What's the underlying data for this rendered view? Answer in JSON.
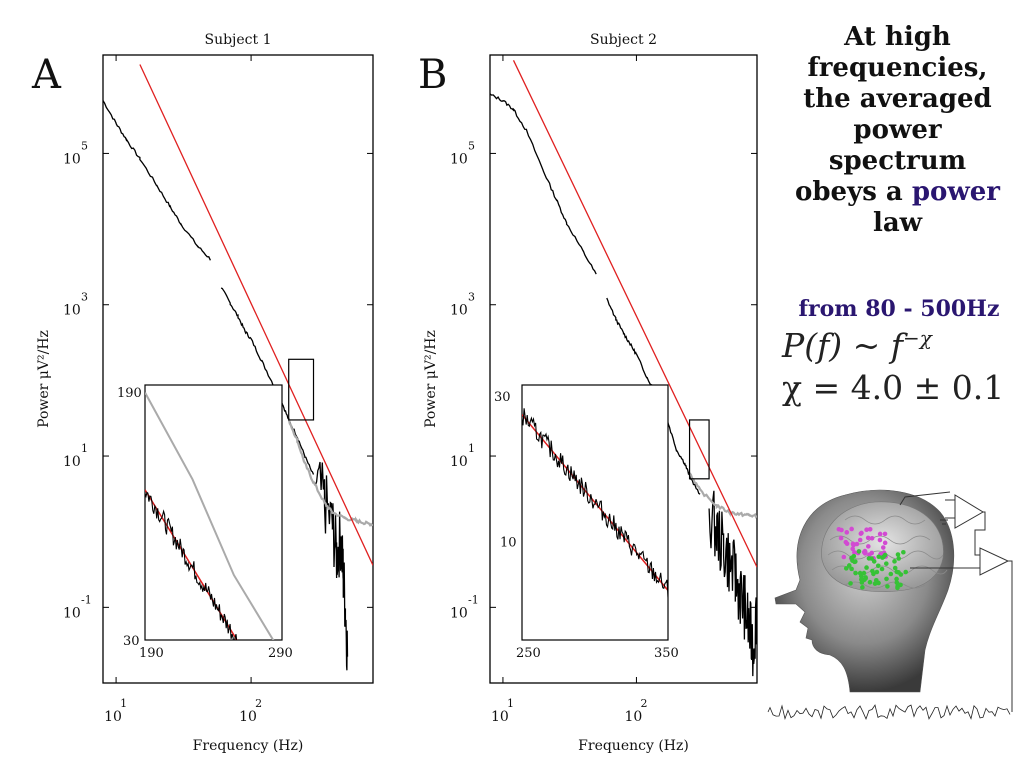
{
  "chart_data": [
    {
      "type": "line",
      "panel_letter": "A",
      "title": "Subject 1",
      "xlabel": "Frequency (Hz)",
      "ylabel": "Power μV²/Hz",
      "x_scale": "log",
      "y_scale": "log",
      "xlim": [
        8,
        800
      ],
      "ylim": [
        0.01,
        2000000
      ],
      "x_ticks": [
        "10 1",
        "10 2"
      ],
      "y_ticks": [
        "10 5",
        "10 3",
        "10 1",
        "10 -1"
      ],
      "series": [
        {
          "role": "averaged_spectrum_low",
          "color": "#000000",
          "x": [
            8,
            10,
            12,
            15,
            20,
            25,
            30,
            40,
            50
          ],
          "y": [
            500000,
            250000,
            150000,
            85000,
            38000,
            20000,
            12000,
            6000,
            4000
          ]
        },
        {
          "role": "averaged_spectrum_high",
          "color": "#000000",
          "x": [
            60,
            70,
            80,
            90,
            100,
            120,
            150,
            170,
            190,
            220,
            250,
            290
          ],
          "y": [
            1700,
            1050,
            700,
            450,
            350,
            180,
            80,
            50,
            30,
            18,
            10,
            5.5
          ]
        },
        {
          "role": "averaged_spectrum_tail",
          "color": "#000000",
          "x": [
            300,
            350,
            400,
            430,
            460,
            480,
            500,
            520
          ],
          "y": [
            5,
            2.5,
            1.2,
            0.5,
            0.8,
            0.3,
            0.1,
            0.02
          ]
        },
        {
          "role": "noise_floor",
          "color": "#aaaaaa",
          "x": [
            190,
            220,
            250,
            290,
            350,
            400,
            500,
            600,
            700,
            800
          ],
          "y": [
            30,
            16,
            8,
            4.5,
            2.4,
            1.8,
            1.5,
            1.4,
            1.3,
            1.25
          ]
        },
        {
          "role": "power_law_fit",
          "color": "#e02020",
          "x": [
            15,
            800
          ],
          "y": [
            1500000,
            0.36
          ]
        }
      ],
      "inset": {
        "xlim": [
          190,
          290
        ],
        "ylim": [
          30,
          190
        ],
        "x_ticks": [
          "190",
          "290"
        ],
        "y_ticks": [
          "190",
          "30"
        ]
      }
    },
    {
      "type": "line",
      "panel_letter": "B",
      "title": "Subject 2",
      "xlabel": "Frequency (Hz)",
      "ylabel": "Power μV²/Hz",
      "x_scale": "log",
      "y_scale": "log",
      "xlim": [
        8,
        800
      ],
      "ylim": [
        0.01,
        2000000
      ],
      "x_ticks": [
        "10 1",
        "10 2"
      ],
      "y_ticks": [
        "10 5",
        "10 3",
        "10 1",
        "10 -1"
      ],
      "series": [
        {
          "role": "averaged_spectrum_low",
          "color": "#000000",
          "x": [
            8,
            10,
            12,
            15,
            20,
            25,
            30,
            40,
            50
          ],
          "y": [
            600000,
            500000,
            380000,
            200000,
            60000,
            25000,
            12000,
            5000,
            2500
          ]
        },
        {
          "role": "averaged_spectrum_high",
          "color": "#000000",
          "x": [
            60,
            70,
            80,
            90,
            100,
            120,
            150,
            170,
            200,
            230,
            250,
            300
          ],
          "y": [
            1200,
            650,
            420,
            300,
            220,
            110,
            55,
            30,
            12,
            8,
            5.5,
            3
          ]
        },
        {
          "role": "averaged_spectrum_tail",
          "color": "#000000",
          "x": [
            350,
            400,
            450,
            500,
            550,
            600,
            650,
            700,
            750,
            800
          ],
          "y": [
            1.8,
            1,
            0.6,
            0.4,
            0.25,
            0.15,
            0.1,
            0.05,
            0.03,
            0.1
          ]
        },
        {
          "role": "noise_floor",
          "color": "#aaaaaa",
          "x": [
            250,
            300,
            400,
            500,
            600,
            700,
            800
          ],
          "y": [
            6,
            3.5,
            2.2,
            1.8,
            1.7,
            1.65,
            1.6
          ]
        },
        {
          "role": "power_law_fit",
          "color": "#e02020",
          "x": [
            12,
            800
          ],
          "y": [
            1700000,
            0.34
          ]
        }
      ],
      "inset": {
        "xlim": [
          250,
          350
        ],
        "ylim": [
          5,
          30
        ],
        "x_ticks": [
          "250",
          "350"
        ],
        "y_ticks": [
          "30",
          "10"
        ]
      }
    }
  ],
  "heading": {
    "line1": "At high frequencies, the averaged power spectrum obeys a",
    "accent": "power",
    "line2": "law"
  },
  "range_text": "from 80 - 500Hz",
  "equation_1": "P(f) ~ f",
  "equation_1_exponent": "−χ",
  "equation_2": "χ = 4.0 ± 0.1",
  "colors": {
    "fit": "#e02020",
    "spectrum": "#000000",
    "noise": "#aaaaaa",
    "accent": "#2a1670",
    "electrode_magenta": "#d24ad2",
    "electrode_green": "#36c236"
  },
  "illustration": {
    "icon": "brain-electrode-head-icon"
  }
}
